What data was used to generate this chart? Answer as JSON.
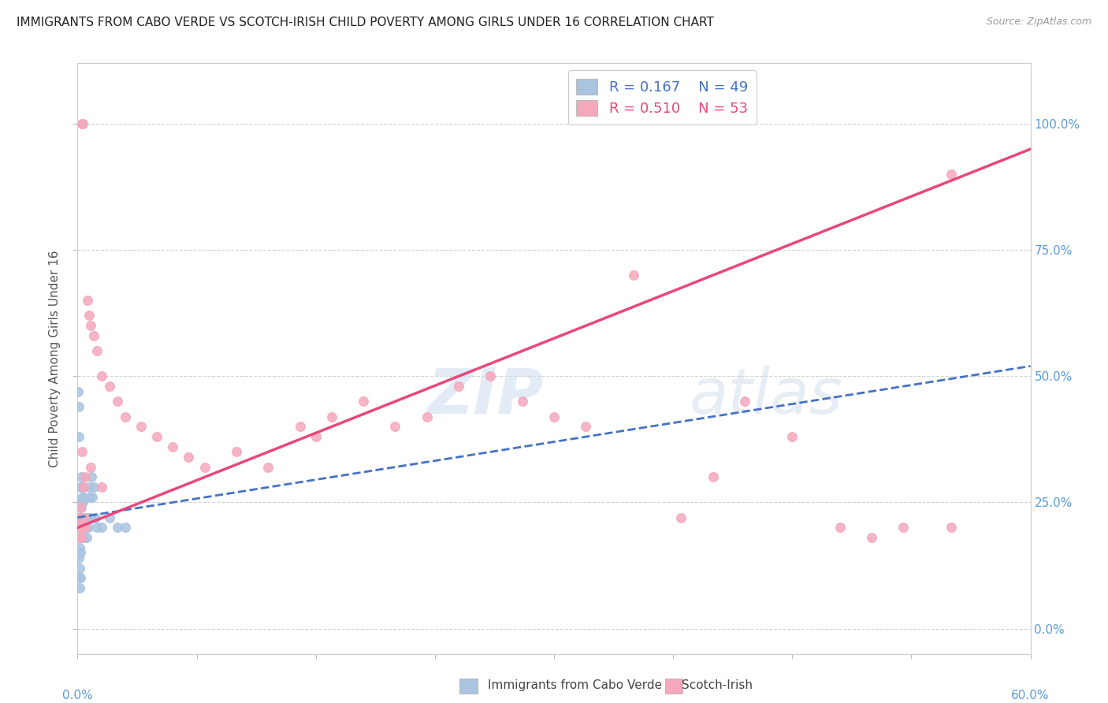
{
  "title": "IMMIGRANTS FROM CABO VERDE VS SCOTCH-IRISH CHILD POVERTY AMONG GIRLS UNDER 16 CORRELATION CHART",
  "source": "Source: ZipAtlas.com",
  "ylabel": "Child Poverty Among Girls Under 16",
  "ytick_values": [
    0,
    25,
    50,
    75,
    100
  ],
  "xlim": [
    0,
    60
  ],
  "ylim": [
    -5,
    112
  ],
  "legend1_r": "0.167",
  "legend1_n": "49",
  "legend2_r": "0.510",
  "legend2_n": "53",
  "cabo_verde_color": "#aac4e0",
  "scotch_irish_color": "#f5a8bc",
  "cabo_verde_line_color": "#4472c4",
  "scotch_irish_line_color": "#e8487a",
  "background_color": "#ffffff",
  "watermark_zip": "ZIP",
  "watermark_atlas": "atlas",
  "cabo_verde_x": [
    0.05,
    0.08,
    0.1,
    0.1,
    0.12,
    0.12,
    0.15,
    0.15,
    0.18,
    0.18,
    0.2,
    0.2,
    0.2,
    0.22,
    0.22,
    0.25,
    0.25,
    0.28,
    0.28,
    0.3,
    0.3,
    0.32,
    0.35,
    0.35,
    0.38,
    0.4,
    0.4,
    0.42,
    0.45,
    0.48,
    0.5,
    0.55,
    0.6,
    0.65,
    0.7,
    0.75,
    0.8,
    0.85,
    0.9,
    1.0,
    1.1,
    1.2,
    1.5,
    2.0,
    2.5,
    3.0,
    0.05,
    0.06,
    0.07
  ],
  "cabo_verde_y": [
    18,
    14,
    22,
    10,
    16,
    8,
    20,
    12,
    25,
    15,
    28,
    20,
    10,
    22,
    18,
    30,
    24,
    26,
    20,
    28,
    22,
    18,
    25,
    20,
    22,
    26,
    18,
    22,
    20,
    22,
    20,
    18,
    22,
    20,
    28,
    26,
    22,
    30,
    26,
    28,
    22,
    20,
    20,
    22,
    20,
    20,
    47,
    44,
    38
  ],
  "scotch_irish_x": [
    0.1,
    0.15,
    0.18,
    0.2,
    0.22,
    0.25,
    0.28,
    0.3,
    0.35,
    0.4,
    0.45,
    0.5,
    0.6,
    0.7,
    0.8,
    1.0,
    1.2,
    1.5,
    2.0,
    2.5,
    3.0,
    4.0,
    5.0,
    6.0,
    7.0,
    8.0,
    10.0,
    12.0,
    14.0,
    15.0,
    16.0,
    18.0,
    20.0,
    22.0,
    24.0,
    26.0,
    28.0,
    30.0,
    32.0,
    35.0,
    38.0,
    40.0,
    42.0,
    45.0,
    48.0,
    50.0,
    52.0,
    55.0,
    0.3,
    0.5,
    0.8,
    1.5,
    55.0
  ],
  "scotch_irish_y": [
    22,
    20,
    18,
    24,
    18,
    22,
    20,
    100,
    100,
    28,
    22,
    20,
    65,
    62,
    60,
    58,
    55,
    50,
    48,
    45,
    42,
    40,
    38,
    36,
    34,
    32,
    35,
    32,
    40,
    38,
    42,
    45,
    40,
    42,
    48,
    50,
    45,
    42,
    40,
    70,
    22,
    30,
    45,
    38,
    20,
    18,
    20,
    20,
    35,
    30,
    32,
    28,
    90
  ]
}
